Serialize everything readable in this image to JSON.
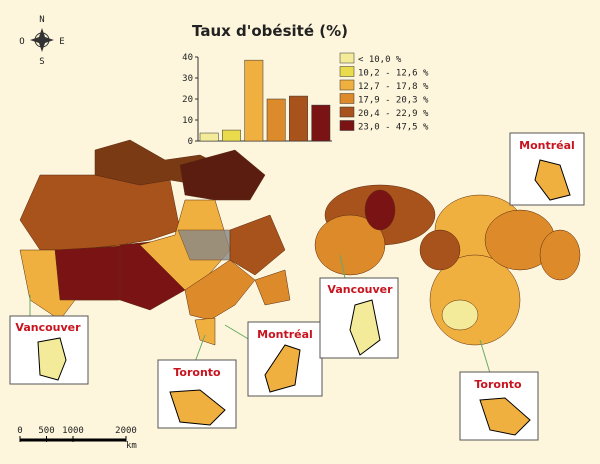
{
  "chart_data": {
    "type": "bar",
    "title": "Taux d'obésité (%)",
    "categories": [
      "< 10,0 %",
      "10,2 - 12,6 %",
      "12,7 - 17,8 %",
      "17,9 - 20,3 %",
      "20,4 - 22,9 %",
      "23,0 - 47,5 %"
    ],
    "values": [
      3.8,
      5.2,
      38.5,
      20,
      21.4,
      17.1
    ],
    "colors": [
      "#f3eb9a",
      "#eadb4c",
      "#f0b040",
      "#dd8a2a",
      "#a8521c",
      "#7a1414"
    ],
    "ylim": [
      0,
      40
    ],
    "yticks": [
      0,
      10,
      20,
      30,
      40
    ]
  },
  "map": {
    "compass": [
      "N",
      "E",
      "S",
      "O"
    ],
    "cities_left": [
      "Vancouver",
      "Toronto",
      "Montréal"
    ],
    "cities_right": [
      "Vancouver",
      "Montréal",
      "Toronto"
    ],
    "scalebar": {
      "ticks": [
        0,
        500,
        1000,
        2000
      ],
      "unit": "km"
    }
  }
}
